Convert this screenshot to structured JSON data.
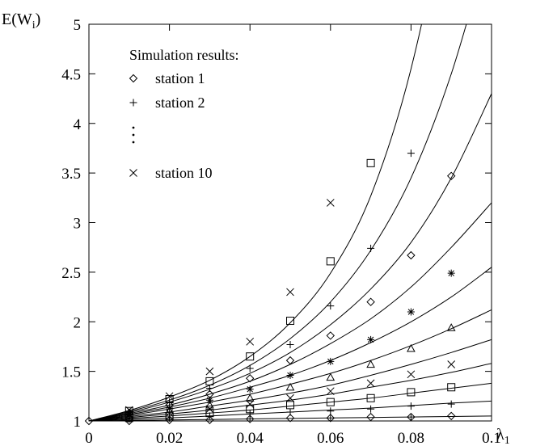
{
  "chart_data": {
    "type": "scatter",
    "title": "",
    "xlabel": "λ1",
    "ylabel": "E(Wi)",
    "xlim": [
      0,
      0.1
    ],
    "ylim": [
      1,
      5
    ],
    "xticks": [
      0,
      0.02,
      0.04,
      0.06,
      0.08,
      0.1
    ],
    "xtick_labels": [
      "0",
      "0.02",
      "0.04",
      "0.06",
      "0.08",
      "0.1"
    ],
    "yticks": [
      1,
      1.5,
      2,
      2.5,
      3,
      3.5,
      4,
      4.5,
      5
    ],
    "ytick_labels": [
      "1",
      "1.5",
      "2",
      "2.5",
      "3",
      "3.5",
      "4",
      "4.5",
      "5"
    ],
    "grid": false,
    "legend": {
      "title": "Simulation results:",
      "placement": "top-left",
      "entries": [
        {
          "marker": "diamond",
          "label": "station 1"
        },
        {
          "marker": "plus",
          "label": "station 2"
        },
        {
          "marker": "vdots",
          "label": "⋮"
        },
        {
          "marker": "cross",
          "label": "station 10"
        }
      ]
    },
    "curves_x": [
      0,
      0.01,
      0.02,
      0.03,
      0.04,
      0.05,
      0.06,
      0.07,
      0.08,
      0.09,
      0.1
    ],
    "curves": [
      [
        1,
        1.005,
        1.01,
        1.015,
        1.02,
        1.025,
        1.03,
        1.035,
        1.04,
        1.045,
        1.05
      ],
      [
        1,
        1.015,
        1.03,
        1.05,
        1.07,
        1.09,
        1.11,
        1.13,
        1.155,
        1.18,
        1.2
      ],
      [
        1,
        1.025,
        1.05,
        1.08,
        1.11,
        1.15,
        1.19,
        1.23,
        1.28,
        1.33,
        1.38
      ],
      [
        1,
        1.035,
        1.07,
        1.11,
        1.16,
        1.21,
        1.27,
        1.34,
        1.41,
        1.49,
        1.58
      ],
      [
        1,
        1.045,
        1.09,
        1.15,
        1.21,
        1.28,
        1.36,
        1.46,
        1.57,
        1.69,
        1.82
      ],
      [
        1,
        1.055,
        1.12,
        1.19,
        1.27,
        1.37,
        1.48,
        1.61,
        1.76,
        1.93,
        2.12
      ],
      [
        1,
        1.065,
        1.14,
        1.23,
        1.34,
        1.46,
        1.61,
        1.79,
        2.0,
        2.25,
        2.55
      ],
      [
        1,
        1.075,
        1.16,
        1.27,
        1.4,
        1.57,
        1.78,
        2.03,
        2.35,
        2.75,
        3.2
      ],
      [
        1,
        1.085,
        1.19,
        1.32,
        1.48,
        1.69,
        1.97,
        2.33,
        2.8,
        3.45,
        4.3
      ],
      [
        1,
        1.095,
        1.21,
        1.36,
        1.56,
        1.83,
        2.2,
        2.72,
        3.45,
        4.5,
        5.9
      ],
      [
        1,
        1.105,
        1.24,
        1.41,
        1.65,
        1.99,
        2.49,
        3.27,
        4.55,
        6.5,
        9
      ]
    ],
    "points": [
      {
        "x": 0,
        "y": 1.0,
        "m": "diamond"
      },
      {
        "x": 0.01,
        "y": 1.0,
        "m": "diamond"
      },
      {
        "x": 0.01,
        "y": 1.02,
        "m": "plus"
      },
      {
        "x": 0.01,
        "y": 1.03,
        "m": "square"
      },
      {
        "x": 0.01,
        "y": 1.05,
        "m": "triangle"
      },
      {
        "x": 0.01,
        "y": 1.06,
        "m": "star"
      },
      {
        "x": 0.01,
        "y": 1.07,
        "m": "cross"
      },
      {
        "x": 0.01,
        "y": 1.08,
        "m": "diamond"
      },
      {
        "x": 0.01,
        "y": 1.09,
        "m": "plus"
      },
      {
        "x": 0.01,
        "y": 1.1,
        "m": "square"
      },
      {
        "x": 0.01,
        "y": 1.11,
        "m": "cross"
      },
      {
        "x": 0.02,
        "y": 1.01,
        "m": "diamond"
      },
      {
        "x": 0.02,
        "y": 1.03,
        "m": "plus"
      },
      {
        "x": 0.02,
        "y": 1.05,
        "m": "square"
      },
      {
        "x": 0.02,
        "y": 1.08,
        "m": "cross"
      },
      {
        "x": 0.02,
        "y": 1.1,
        "m": "triangle"
      },
      {
        "x": 0.02,
        "y": 1.13,
        "m": "star"
      },
      {
        "x": 0.02,
        "y": 1.16,
        "m": "diamond"
      },
      {
        "x": 0.02,
        "y": 1.19,
        "m": "plus"
      },
      {
        "x": 0.02,
        "y": 1.22,
        "m": "square"
      },
      {
        "x": 0.02,
        "y": 1.25,
        "m": "cross"
      },
      {
        "x": 0.03,
        "y": 1.01,
        "m": "diamond"
      },
      {
        "x": 0.03,
        "y": 1.05,
        "m": "plus"
      },
      {
        "x": 0.03,
        "y": 1.08,
        "m": "square"
      },
      {
        "x": 0.03,
        "y": 1.12,
        "m": "cross"
      },
      {
        "x": 0.03,
        "y": 1.16,
        "m": "triangle"
      },
      {
        "x": 0.03,
        "y": 1.21,
        "m": "star"
      },
      {
        "x": 0.03,
        "y": 1.27,
        "m": "diamond"
      },
      {
        "x": 0.03,
        "y": 1.33,
        "m": "plus"
      },
      {
        "x": 0.03,
        "y": 1.4,
        "m": "square"
      },
      {
        "x": 0.03,
        "y": 1.5,
        "m": "cross"
      },
      {
        "x": 0.04,
        "y": 1.02,
        "m": "diamond"
      },
      {
        "x": 0.04,
        "y": 1.07,
        "m": "plus"
      },
      {
        "x": 0.04,
        "y": 1.12,
        "m": "square"
      },
      {
        "x": 0.04,
        "y": 1.17,
        "m": "cross"
      },
      {
        "x": 0.04,
        "y": 1.23,
        "m": "triangle"
      },
      {
        "x": 0.04,
        "y": 1.32,
        "m": "star"
      },
      {
        "x": 0.04,
        "y": 1.43,
        "m": "diamond"
      },
      {
        "x": 0.04,
        "y": 1.53,
        "m": "plus"
      },
      {
        "x": 0.04,
        "y": 1.65,
        "m": "square"
      },
      {
        "x": 0.04,
        "y": 1.8,
        "m": "cross"
      },
      {
        "x": 0.05,
        "y": 1.03,
        "m": "diamond"
      },
      {
        "x": 0.05,
        "y": 1.09,
        "m": "plus"
      },
      {
        "x": 0.05,
        "y": 1.16,
        "m": "square"
      },
      {
        "x": 0.05,
        "y": 1.23,
        "m": "cross"
      },
      {
        "x": 0.05,
        "y": 1.34,
        "m": "triangle"
      },
      {
        "x": 0.05,
        "y": 1.46,
        "m": "star"
      },
      {
        "x": 0.05,
        "y": 1.61,
        "m": "diamond"
      },
      {
        "x": 0.05,
        "y": 1.77,
        "m": "plus"
      },
      {
        "x": 0.05,
        "y": 2.01,
        "m": "square"
      },
      {
        "x": 0.05,
        "y": 2.3,
        "m": "cross"
      },
      {
        "x": 0.06,
        "y": 1.03,
        "m": "diamond"
      },
      {
        "x": 0.06,
        "y": 1.1,
        "m": "plus"
      },
      {
        "x": 0.06,
        "y": 1.19,
        "m": "square"
      },
      {
        "x": 0.06,
        "y": 1.3,
        "m": "cross"
      },
      {
        "x": 0.06,
        "y": 1.44,
        "m": "triangle"
      },
      {
        "x": 0.06,
        "y": 1.6,
        "m": "star"
      },
      {
        "x": 0.06,
        "y": 1.86,
        "m": "diamond"
      },
      {
        "x": 0.06,
        "y": 2.16,
        "m": "plus"
      },
      {
        "x": 0.06,
        "y": 2.61,
        "m": "square"
      },
      {
        "x": 0.06,
        "y": 3.2,
        "m": "cross"
      },
      {
        "x": 0.07,
        "y": 1.04,
        "m": "diamond"
      },
      {
        "x": 0.07,
        "y": 1.12,
        "m": "plus"
      },
      {
        "x": 0.07,
        "y": 1.23,
        "m": "square"
      },
      {
        "x": 0.07,
        "y": 1.38,
        "m": "cross"
      },
      {
        "x": 0.07,
        "y": 1.57,
        "m": "triangle"
      },
      {
        "x": 0.07,
        "y": 1.82,
        "m": "star"
      },
      {
        "x": 0.07,
        "y": 2.2,
        "m": "diamond"
      },
      {
        "x": 0.07,
        "y": 2.74,
        "m": "plus"
      },
      {
        "x": 0.07,
        "y": 3.6,
        "m": "square"
      },
      {
        "x": 0.08,
        "y": 1.04,
        "m": "diamond"
      },
      {
        "x": 0.08,
        "y": 1.15,
        "m": "plus"
      },
      {
        "x": 0.08,
        "y": 1.29,
        "m": "square"
      },
      {
        "x": 0.08,
        "y": 1.47,
        "m": "cross"
      },
      {
        "x": 0.08,
        "y": 1.73,
        "m": "triangle"
      },
      {
        "x": 0.08,
        "y": 2.1,
        "m": "star"
      },
      {
        "x": 0.08,
        "y": 2.67,
        "m": "diamond"
      },
      {
        "x": 0.08,
        "y": 3.7,
        "m": "plus"
      },
      {
        "x": 0.09,
        "y": 1.05,
        "m": "diamond"
      },
      {
        "x": 0.09,
        "y": 1.17,
        "m": "plus"
      },
      {
        "x": 0.09,
        "y": 1.34,
        "m": "square"
      },
      {
        "x": 0.09,
        "y": 1.57,
        "m": "cross"
      },
      {
        "x": 0.09,
        "y": 1.94,
        "m": "triangle"
      },
      {
        "x": 0.09,
        "y": 2.49,
        "m": "star"
      },
      {
        "x": 0.09,
        "y": 3.47,
        "m": "diamond"
      }
    ]
  }
}
